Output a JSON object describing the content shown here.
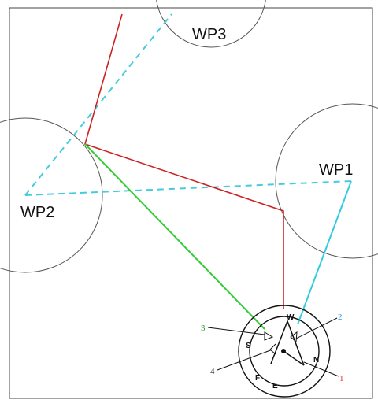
{
  "waypoints": [
    {
      "id": "wp1",
      "label": "WP1"
    },
    {
      "id": "wp2",
      "label": "WP2"
    },
    {
      "id": "wp3",
      "label": "WP3"
    }
  ],
  "compass": {
    "labels": {
      "west": "W",
      "south": "S",
      "north": "N",
      "east": "E"
    }
  },
  "callouts": [
    {
      "id": "callout-1",
      "number": "1",
      "color": "#e0312b"
    },
    {
      "id": "callout-2",
      "number": "2",
      "color": "#3b8fd6"
    },
    {
      "id": "callout-3",
      "number": "3",
      "color": "#2ea02e"
    },
    {
      "id": "callout-4",
      "number": "4",
      "color": "#222222"
    }
  ],
  "colors": {
    "path_red": "#cc2222",
    "path_green": "#33cc33",
    "path_cyan": "#33ccdd",
    "dashed_cyan": "#44ccdd",
    "circle_gray": "#555555",
    "frame": "#444444"
  }
}
